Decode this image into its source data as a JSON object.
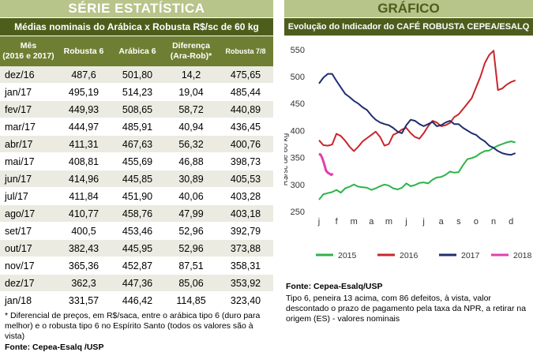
{
  "left": {
    "title": "SÉRIE ESTATÍSTICA",
    "subtitle": "Médias nominais do Arábica x Robusta R$/sc de 60 kg",
    "headers": {
      "mes_line1": "Mês",
      "mes_line2": "(2016 e 2017)",
      "robusta6": "Robusta 6",
      "arabica6": "Arábica 6",
      "dif_line1": "Diferença",
      "dif_line2": "(Ara-Rob)*",
      "robusta78": "Robusta 7/8"
    },
    "rows": [
      [
        "dez/16",
        "487,6",
        "501,80",
        "14,2",
        "475,65"
      ],
      [
        "jan/17",
        "495,19",
        "514,23",
        "19,04",
        "485,44"
      ],
      [
        "fev/17",
        "449,93",
        "508,65",
        "58,72",
        "440,89"
      ],
      [
        "mar/17",
        "444,97",
        "485,91",
        "40,94",
        "436,45"
      ],
      [
        "abr/17",
        "411,31",
        "467,63",
        "56,32",
        "400,76"
      ],
      [
        "mai/17",
        "408,81",
        "455,69",
        "46,88",
        "398,73"
      ],
      [
        "jun/17",
        "414,96",
        "445,85",
        "30,89",
        "405,53"
      ],
      [
        "jul/17",
        "411,84",
        "451,90",
        "40,06",
        "403,28"
      ],
      [
        "ago/17",
        "410,77",
        "458,76",
        "47,99",
        "403,18"
      ],
      [
        "set/17",
        "400,5",
        "453,46",
        "52,96",
        "392,79"
      ],
      [
        "out/17",
        "382,43",
        "445,95",
        "52,96",
        "373,88"
      ],
      [
        "nov/17",
        "365,36",
        "452,87",
        "87,51",
        "358,31"
      ],
      [
        "dez/17",
        "362,3",
        "447,36",
        "85,06",
        "353,92"
      ],
      [
        "jan/18",
        "331,57",
        "446,42",
        "114,85",
        "323,40"
      ]
    ],
    "footnote": "* Diferencial de preços, em R$/saca, entre o arábica tipo 6 (duro para melhor) e o robusta tipo 6 no Espírito Santo (todos os valores são à vista)",
    "source": "Fonte: Cepea-Esalq /USP"
  },
  "right": {
    "title": "GRÁFICO",
    "subtitle": "Evolução do Indicador do CAFÉ ROBUSTA CEPEA/ESALQ",
    "source": "Fonte: Cepea-Esalq/USP",
    "note": "Tipo 6, peneira 13 acima, com 86 defeitos, à vista, valor descontado o prazo de pagamento pela taxa da NPR, a retirar na origem (ES) - valores nominais"
  },
  "chart_data": {
    "type": "line",
    "title": "",
    "xlabel": "",
    "ylabel": "R$/sc de 60 kg",
    "ylim": [
      250,
      560
    ],
    "yticks": [
      250,
      300,
      350,
      400,
      450,
      500,
      550
    ],
    "categories": [
      "j",
      "f",
      "m",
      "a",
      "m",
      "j",
      "j",
      "a",
      "s",
      "o",
      "n",
      "d"
    ],
    "legend_position": "bottom",
    "grid": false,
    "series": [
      {
        "name": "2015",
        "color": "#2db34a",
        "x": [
          0,
          0.25,
          0.5,
          0.75,
          1,
          1.25,
          1.5,
          1.75,
          2,
          2.25,
          2.5,
          2.75,
          3,
          3.25,
          3.5,
          3.75,
          4,
          4.25,
          4.5,
          4.75,
          5,
          5.25,
          5.5,
          5.75,
          6,
          6.25,
          6.5,
          6.75,
          7,
          7.25,
          7.5,
          7.75,
          8,
          8.25,
          8.5,
          8.75,
          9,
          9.25,
          9.5,
          9.75,
          10,
          10.25,
          10.5,
          10.75,
          11,
          11.25
        ],
        "values": [
          272,
          282,
          284,
          286,
          290,
          285,
          293,
          296,
          300,
          296,
          295,
          294,
          290,
          293,
          297,
          300,
          298,
          293,
          291,
          294,
          302,
          297,
          299,
          303,
          304,
          302,
          309,
          313,
          314,
          318,
          324,
          322,
          323,
          336,
          347,
          349,
          352,
          358,
          362,
          363,
          368,
          372,
          375,
          378,
          380,
          378
        ]
      },
      {
        "name": "2016",
        "color": "#c8262c",
        "x": [
          0,
          0.25,
          0.5,
          0.75,
          1,
          1.25,
          1.5,
          1.75,
          2,
          2.25,
          2.5,
          2.75,
          3,
          3.25,
          3.5,
          3.75,
          4,
          4.25,
          4.5,
          4.75,
          5,
          5.25,
          5.5,
          5.75,
          6,
          6.25,
          6.5,
          6.75,
          7,
          7.25,
          7.5,
          7.75,
          8,
          8.25,
          8.5,
          8.75,
          9,
          9.25,
          9.5,
          9.75,
          10,
          10.25,
          10.5,
          10.75,
          11,
          11.25
        ],
        "values": [
          382,
          373,
          372,
          374,
          394,
          390,
          381,
          370,
          362,
          370,
          380,
          386,
          392,
          398,
          388,
          372,
          375,
          392,
          396,
          402,
          405,
          395,
          388,
          385,
          395,
          408,
          418,
          415,
          408,
          410,
          414,
          425,
          430,
          440,
          450,
          460,
          480,
          500,
          525,
          540,
          548,
          475,
          478,
          485,
          490,
          493
        ]
      },
      {
        "name": "2017",
        "color": "#1f2e6e",
        "x": [
          0,
          0.25,
          0.5,
          0.75,
          1,
          1.25,
          1.5,
          1.75,
          2,
          2.25,
          2.5,
          2.75,
          3,
          3.25,
          3.5,
          3.75,
          4,
          4.25,
          4.5,
          4.75,
          5,
          5.25,
          5.5,
          5.75,
          6,
          6.25,
          6.5,
          6.75,
          7,
          7.25,
          7.5,
          7.75,
          8,
          8.25,
          8.5,
          8.75,
          9,
          9.25,
          9.5,
          9.75,
          10,
          10.25,
          10.5,
          10.75,
          11,
          11.25
        ],
        "values": [
          487,
          498,
          505,
          505,
          492,
          480,
          468,
          462,
          455,
          450,
          443,
          438,
          428,
          420,
          415,
          412,
          410,
          405,
          398,
          395,
          410,
          420,
          418,
          412,
          408,
          412,
          416,
          408,
          410,
          415,
          418,
          412,
          412,
          405,
          400,
          395,
          392,
          385,
          380,
          372,
          368,
          362,
          358,
          356,
          355,
          358
        ]
      },
      {
        "name": "2018",
        "color": "#e23fae",
        "x": [
          0,
          0.1,
          0.2,
          0.3,
          0.4,
          0.5,
          0.6,
          0.7,
          0.8
        ],
        "values": [
          357,
          355,
          348,
          338,
          326,
          322,
          320,
          318,
          320
        ]
      }
    ]
  }
}
